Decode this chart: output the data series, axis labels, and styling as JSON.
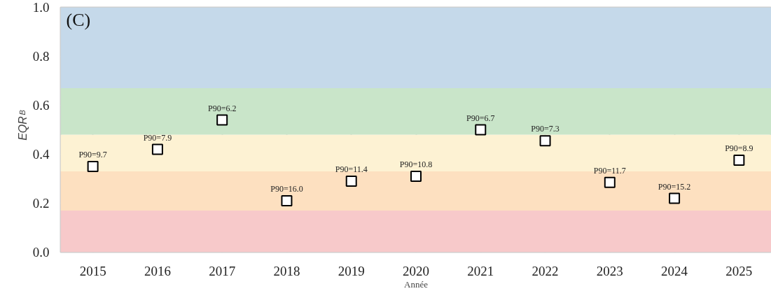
{
  "chart_data": {
    "type": "scatter",
    "title": "(C)",
    "xlabel": "Année",
    "ylabel": "EQR$_{B}$",
    "categories": [
      "2015",
      "2016",
      "2017",
      "2018",
      "2019",
      "2020",
      "2021",
      "2022",
      "2023",
      "2024",
      "2025"
    ],
    "series": [
      {
        "color": "#000000",
        "values": [
          0.35,
          0.42,
          0.54,
          0.21,
          0.29,
          0.31,
          0.5,
          0.455,
          0.285,
          0.22,
          0.376
        ],
        "value_labels": [
          "P90=9.7",
          "P90=7.9",
          "P90=6.2",
          "P90=16.0",
          "P90=11.4",
          "P90=10.8",
          "P90=6.7",
          "P90=7.3",
          "P90=11.7",
          "P90=15.2",
          "P90=8.9"
        ]
      }
    ],
    "ylim": [
      0,
      1.0
    ],
    "yticks": [
      {
        "value": 0,
        "label": "0.0"
      },
      {
        "value": 0.2,
        "label": "0.2"
      },
      {
        "value": 0.4,
        "label": "0.4"
      },
      {
        "value": 0.6,
        "label": "0.6"
      },
      {
        "value": 0.8,
        "label": "0.8"
      },
      {
        "value": 1,
        "label": "1.0"
      }
    ],
    "bands": [
      {
        "axis": "y",
        "from": 0,
        "to": 0.17,
        "color": "#f7c9ca"
      },
      {
        "axis": "y",
        "from": 0.17,
        "to": 0.33,
        "color": "#fde0c0"
      },
      {
        "axis": "y",
        "from": 0.33,
        "to": 0.48,
        "color": "#fdf2d3"
      },
      {
        "axis": "y",
        "from": 0.48,
        "to": 0.67,
        "color": "#c9e5c9"
      },
      {
        "axis": "y",
        "from": 0.67,
        "to": 1.0,
        "color": "#c5d9ea"
      }
    ],
    "grid": true,
    "marker": "square"
  }
}
